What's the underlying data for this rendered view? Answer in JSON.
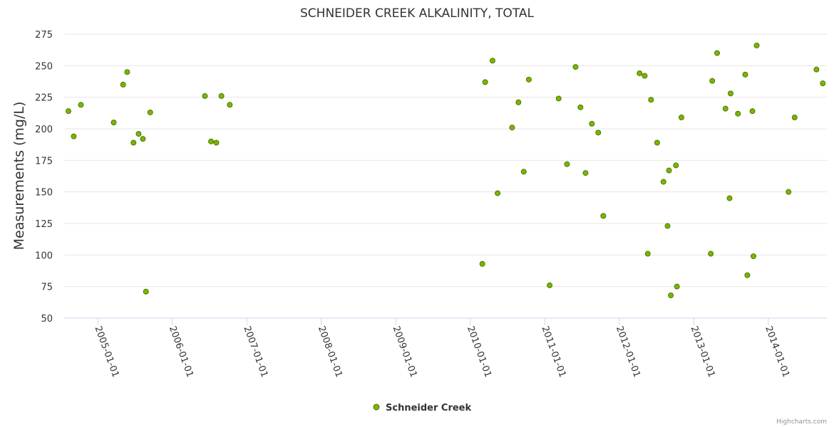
{
  "colors": {
    "marker_fill": "#7cb500",
    "marker_stroke": "#4b7a00",
    "grid": "#e6e6e6",
    "axis": "#ccd6eb"
  },
  "credits": "Highcharts.com",
  "chart_data": {
    "type": "scatter",
    "title": "SCHNEIDER CREEK ALKALINITY, TOTAL",
    "ylabel": "Measurements (mg/L)",
    "xlabel": "",
    "ylim": [
      50,
      275
    ],
    "y_ticks": [
      50,
      75,
      100,
      125,
      150,
      175,
      200,
      225,
      250,
      275
    ],
    "xlim": [
      "2004-07-20",
      "2014-10-15"
    ],
    "x_ticks": [
      "2005-01-01",
      "2006-01-01",
      "2007-01-01",
      "2008-01-01",
      "2009-01-01",
      "2010-01-01",
      "2011-01-01",
      "2012-01-01",
      "2013-01-01",
      "2014-01-01"
    ],
    "grid": true,
    "legend_position": "bottom-center",
    "series": [
      {
        "name": "Schneider Creek",
        "points": [
          {
            "x": "2004-08-10",
            "y": 214
          },
          {
            "x": "2004-09-05",
            "y": 194
          },
          {
            "x": "2004-10-10",
            "y": 219
          },
          {
            "x": "2005-03-20",
            "y": 205
          },
          {
            "x": "2005-05-05",
            "y": 235
          },
          {
            "x": "2005-05-25",
            "y": 245
          },
          {
            "x": "2005-06-25",
            "y": 189
          },
          {
            "x": "2005-07-20",
            "y": 196
          },
          {
            "x": "2005-08-10",
            "y": 192
          },
          {
            "x": "2005-08-25",
            "y": 71
          },
          {
            "x": "2005-09-15",
            "y": 213
          },
          {
            "x": "2006-06-10",
            "y": 226
          },
          {
            "x": "2006-07-10",
            "y": 190
          },
          {
            "x": "2006-08-05",
            "y": 189
          },
          {
            "x": "2006-08-30",
            "y": 226
          },
          {
            "x": "2006-10-10",
            "y": 219
          },
          {
            "x": "2010-03-01",
            "y": 93
          },
          {
            "x": "2010-03-15",
            "y": 237
          },
          {
            "x": "2010-04-20",
            "y": 254
          },
          {
            "x": "2010-05-15",
            "y": 149
          },
          {
            "x": "2010-07-25",
            "y": 201
          },
          {
            "x": "2010-08-25",
            "y": 221
          },
          {
            "x": "2010-09-20",
            "y": 166
          },
          {
            "x": "2010-10-15",
            "y": 239
          },
          {
            "x": "2011-01-25",
            "y": 76
          },
          {
            "x": "2011-03-10",
            "y": 224
          },
          {
            "x": "2011-04-20",
            "y": 172
          },
          {
            "x": "2011-06-01",
            "y": 249
          },
          {
            "x": "2011-06-25",
            "y": 217
          },
          {
            "x": "2011-07-20",
            "y": 165
          },
          {
            "x": "2011-08-20",
            "y": 204
          },
          {
            "x": "2011-09-20",
            "y": 197
          },
          {
            "x": "2011-10-15",
            "y": 131
          },
          {
            "x": "2012-04-10",
            "y": 244
          },
          {
            "x": "2012-05-05",
            "y": 242
          },
          {
            "x": "2012-05-20",
            "y": 101
          },
          {
            "x": "2012-06-05",
            "y": 223
          },
          {
            "x": "2012-07-05",
            "y": 189
          },
          {
            "x": "2012-08-05",
            "y": 158
          },
          {
            "x": "2012-08-25",
            "y": 123
          },
          {
            "x": "2012-09-01",
            "y": 167
          },
          {
            "x": "2012-09-10",
            "y": 68
          },
          {
            "x": "2012-10-05",
            "y": 171
          },
          {
            "x": "2012-10-10",
            "y": 75
          },
          {
            "x": "2012-11-01",
            "y": 209
          },
          {
            "x": "2013-03-25",
            "y": 101
          },
          {
            "x": "2013-04-01",
            "y": 238
          },
          {
            "x": "2013-04-25",
            "y": 260
          },
          {
            "x": "2013-06-05",
            "y": 216
          },
          {
            "x": "2013-06-25",
            "y": 145
          },
          {
            "x": "2013-06-30",
            "y": 228
          },
          {
            "x": "2013-08-05",
            "y": 212
          },
          {
            "x": "2013-09-10",
            "y": 243
          },
          {
            "x": "2013-09-20",
            "y": 84
          },
          {
            "x": "2013-10-15",
            "y": 214
          },
          {
            "x": "2013-10-20",
            "y": 99
          },
          {
            "x": "2013-11-05",
            "y": 266
          },
          {
            "x": "2014-04-10",
            "y": 150
          },
          {
            "x": "2014-05-10",
            "y": 209
          },
          {
            "x": "2014-08-25",
            "y": 247
          },
          {
            "x": "2014-09-25",
            "y": 236
          }
        ]
      }
    ]
  }
}
